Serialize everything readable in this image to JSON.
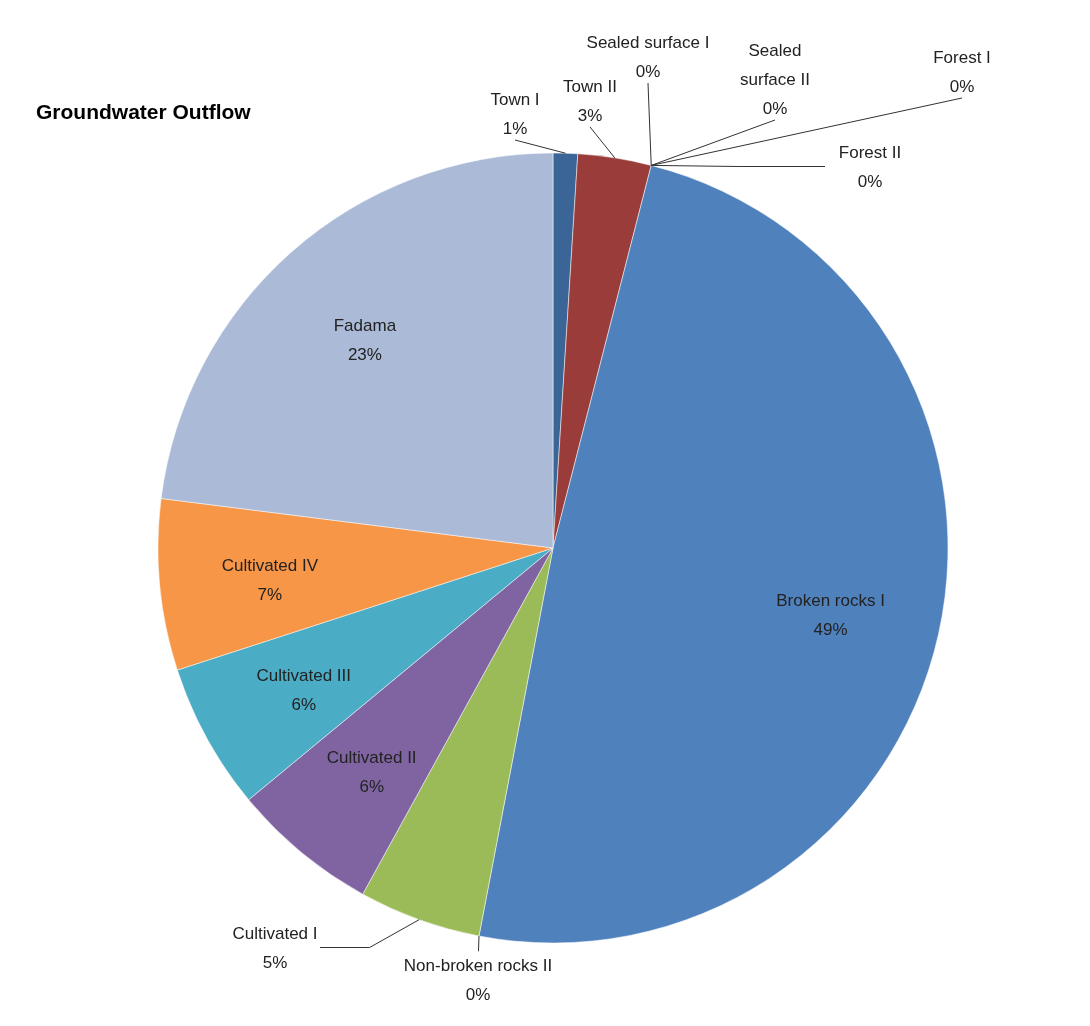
{
  "chart_data": {
    "type": "pie",
    "title": "Groundwater Outflow",
    "categories": [
      "Town I",
      "Town II",
      "Sealed surface I",
      "Sealed surface II",
      "Forest I",
      "Forest II",
      "Broken rocks I",
      "Non-broken rocks II",
      "Cultivated I",
      "Cultivated II",
      "Cultivated III",
      "Cultivated IV",
      "Fadama"
    ],
    "values": [
      1,
      3,
      0,
      0,
      0,
      0,
      49,
      0,
      5,
      6,
      6,
      7,
      23
    ],
    "value_labels": [
      "1%",
      "3%",
      "0%",
      "0%",
      "0%",
      "0%",
      "49%",
      "0%",
      "5%",
      "6%",
      "6%",
      "7%",
      "23%"
    ],
    "colors": [
      "#3b6596",
      "#9a3d3a",
      "#7a9a3e",
      "#6a5088",
      "#3a8ea6",
      "#d27a2c",
      "#4f81bd",
      "#c0504d",
      "#9bbb59",
      "#8064a2",
      "#4bacc6",
      "#f79646",
      "#aabad7"
    ]
  }
}
